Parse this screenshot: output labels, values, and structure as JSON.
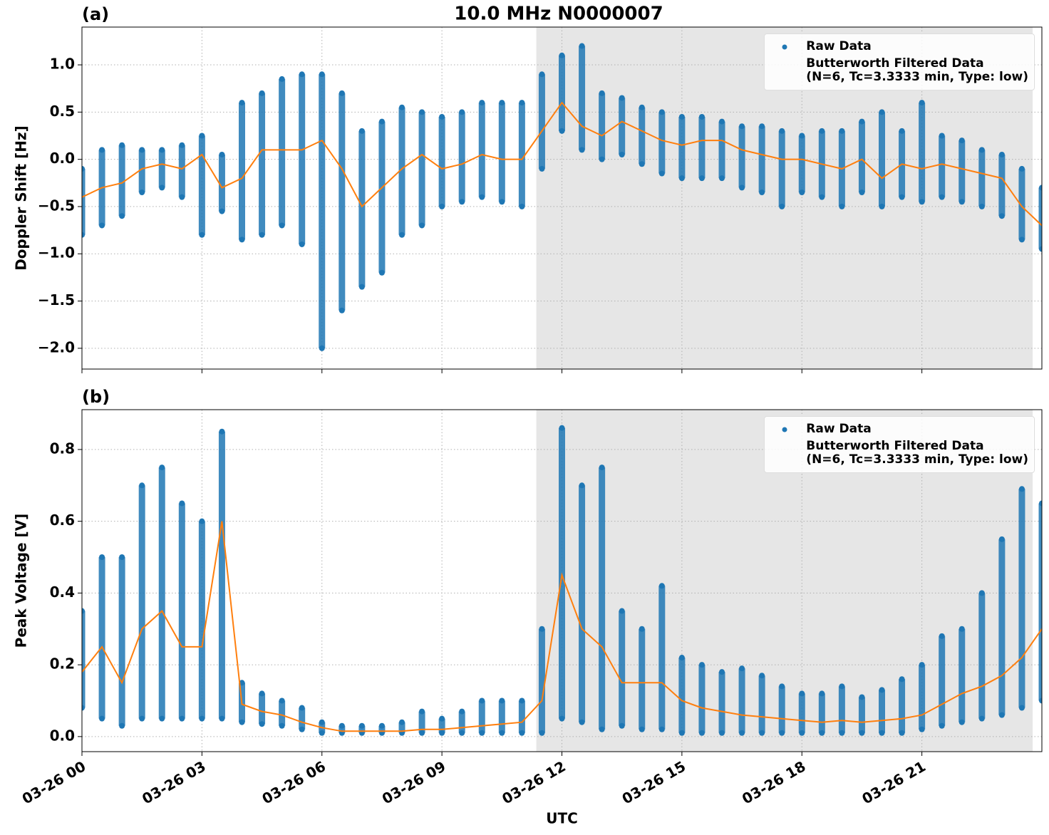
{
  "chart_data": [
    {
      "type": "scatter-line",
      "title": "10.0 MHz N0000007",
      "panel_label": "(a)",
      "y_label": "Doppler Shift [Hz]",
      "xlim": [
        0,
        24
      ],
      "ylim": [
        -2.22,
        1.4
      ],
      "yticks": [
        {
          "value": -2.0,
          "label": "−2.0"
        },
        {
          "value": -1.5,
          "label": "−1.5"
        },
        {
          "value": -1.0,
          "label": "−1.0"
        },
        {
          "value": -0.5,
          "label": "−0.5"
        },
        {
          "value": 0.0,
          "label": "0.0"
        },
        {
          "value": 0.5,
          "label": "0.5"
        },
        {
          "value": 1.0,
          "label": "1.0"
        }
      ],
      "grid": true,
      "legend": "upper right",
      "shade": [
        11.36,
        23.77
      ],
      "series": [
        {
          "name": "Raw Data",
          "color": "#1f77b4",
          "x": [
            0,
            0,
            0.5,
            0.5,
            1,
            1,
            1.5,
            1.5,
            2,
            2,
            2.5,
            2.5,
            3,
            3,
            3.5,
            3.5,
            4,
            4,
            4.5,
            4.5,
            5,
            5,
            5.5,
            5.5,
            6,
            6,
            6.5,
            6.5,
            7,
            7,
            7.5,
            7.5,
            8,
            8,
            8.5,
            8.5,
            9,
            9,
            9.5,
            9.5,
            10,
            10,
            10.5,
            10.5,
            11,
            11,
            11.5,
            11.5,
            12,
            12,
            12.5,
            12.5,
            13,
            13,
            13.5,
            13.5,
            14,
            14,
            14.5,
            14.5,
            15,
            15,
            15.5,
            15.5,
            16,
            16,
            16.5,
            16.5,
            17,
            17,
            17.5,
            17.5,
            18,
            18,
            18.5,
            18.5,
            19,
            19,
            19.5,
            19.5,
            20,
            20,
            20.5,
            20.5,
            21,
            21,
            21.5,
            21.5,
            22,
            22,
            22.5,
            22.5,
            23,
            23,
            23.5,
            23.5,
            24,
            24
          ],
          "values": [
            -0.1,
            -0.8,
            0.1,
            -0.7,
            0.15,
            -0.6,
            0.1,
            -0.35,
            0.1,
            -0.3,
            0.15,
            -0.4,
            0.25,
            -0.8,
            0.05,
            -0.55,
            0.6,
            -0.85,
            0.7,
            -0.8,
            0.85,
            -0.7,
            0.9,
            -0.9,
            0.9,
            -2.0,
            0.7,
            -1.6,
            0.3,
            -1.35,
            0.4,
            -1.2,
            0.55,
            -0.8,
            0.5,
            -0.7,
            0.45,
            -0.5,
            0.5,
            -0.45,
            0.6,
            -0.4,
            0.6,
            -0.45,
            0.6,
            -0.5,
            0.9,
            -0.1,
            1.1,
            0.3,
            1.2,
            0.1,
            0.7,
            0.0,
            0.65,
            0.05,
            0.55,
            -0.05,
            0.5,
            -0.15,
            0.45,
            -0.2,
            0.45,
            -0.2,
            0.4,
            -0.2,
            0.35,
            -0.3,
            0.35,
            -0.35,
            0.3,
            -0.5,
            0.25,
            -0.35,
            0.3,
            -0.4,
            0.3,
            -0.5,
            0.4,
            -0.35,
            0.5,
            -0.5,
            0.3,
            -0.4,
            0.6,
            -0.45,
            0.25,
            -0.4,
            0.2,
            -0.45,
            0.1,
            -0.5,
            0.05,
            -0.6,
            -0.1,
            -0.85,
            -0.3,
            -0.95
          ]
        },
        {
          "name": "Butterworth Filtered Data\n(N=6, Tc=3.3333 min, Type: low)",
          "color": "#ff7f0e",
          "x": [
            0,
            0.5,
            1,
            1.5,
            2,
            2.5,
            3,
            3.5,
            4,
            4.5,
            5,
            5.5,
            6,
            6.5,
            7,
            7.5,
            8,
            8.5,
            9,
            9.5,
            10,
            10.5,
            11,
            11.5,
            12,
            12.5,
            13,
            13.5,
            14,
            14.5,
            15,
            15.5,
            16,
            16.5,
            17,
            17.5,
            18,
            18.5,
            19,
            19.5,
            20,
            20.5,
            21,
            21.5,
            22,
            22.5,
            23,
            23.5,
            24
          ],
          "values": [
            -0.4,
            -0.3,
            -0.25,
            -0.1,
            -0.05,
            -0.1,
            0.05,
            -0.3,
            -0.2,
            0.1,
            0.1,
            0.1,
            0.2,
            -0.1,
            -0.5,
            -0.3,
            -0.1,
            0.05,
            -0.1,
            -0.05,
            0.05,
            0.0,
            0.0,
            0.3,
            0.6,
            0.35,
            0.25,
            0.4,
            0.3,
            0.2,
            0.15,
            0.2,
            0.2,
            0.1,
            0.05,
            0.0,
            0.0,
            -0.05,
            -0.1,
            0.0,
            -0.2,
            -0.05,
            -0.1,
            -0.05,
            -0.1,
            -0.15,
            -0.2,
            -0.5,
            -0.7
          ]
        }
      ]
    },
    {
      "type": "scatter-line",
      "panel_label": "(b)",
      "y_label": "Peak Voltage [V]",
      "x_label": "UTC",
      "xlim": [
        0,
        24
      ],
      "ylim": [
        -0.042,
        0.911
      ],
      "xticks": [
        {
          "value": 0,
          "label": "03-26 00"
        },
        {
          "value": 3,
          "label": "03-26 03"
        },
        {
          "value": 6,
          "label": "03-26 06"
        },
        {
          "value": 9,
          "label": "03-26 09"
        },
        {
          "value": 12,
          "label": "03-26 12"
        },
        {
          "value": 15,
          "label": "03-26 15"
        },
        {
          "value": 18,
          "label": "03-26 18"
        },
        {
          "value": 21,
          "label": "03-26 21"
        }
      ],
      "yticks": [
        {
          "value": 0.0,
          "label": "0.0"
        },
        {
          "value": 0.2,
          "label": "0.2"
        },
        {
          "value": 0.4,
          "label": "0.4"
        },
        {
          "value": 0.6,
          "label": "0.6"
        },
        {
          "value": 0.8,
          "label": "0.8"
        }
      ],
      "grid": true,
      "legend": "upper right",
      "shade": [
        11.36,
        23.77
      ],
      "series": [
        {
          "name": "Raw Data",
          "color": "#1f77b4",
          "x": [
            0,
            0,
            0.5,
            0.5,
            1,
            1,
            1.5,
            1.5,
            2,
            2,
            2.5,
            2.5,
            3,
            3,
            3.5,
            3.5,
            4,
            4,
            4.5,
            4.5,
            5,
            5,
            5.5,
            5.5,
            6,
            6,
            6.5,
            6.5,
            7,
            7,
            7.5,
            7.5,
            8,
            8,
            8.5,
            8.5,
            9,
            9,
            9.5,
            9.5,
            10,
            10,
            10.5,
            10.5,
            11,
            11,
            11.5,
            11.5,
            12,
            12,
            12.5,
            12.5,
            13,
            13,
            13.5,
            13.5,
            14,
            14,
            14.5,
            14.5,
            15,
            15,
            15.5,
            15.5,
            16,
            16,
            16.5,
            16.5,
            17,
            17,
            17.5,
            17.5,
            18,
            18,
            18.5,
            18.5,
            19,
            19,
            19.5,
            19.5,
            20,
            20,
            20.5,
            20.5,
            21,
            21,
            21.5,
            21.5,
            22,
            22,
            22.5,
            22.5,
            23,
            23,
            23.5,
            23.5,
            24,
            24
          ],
          "values": [
            0.35,
            0.08,
            0.5,
            0.05,
            0.5,
            0.03,
            0.7,
            0.05,
            0.75,
            0.05,
            0.65,
            0.05,
            0.6,
            0.05,
            0.85,
            0.05,
            0.15,
            0.04,
            0.12,
            0.035,
            0.1,
            0.03,
            0.08,
            0.02,
            0.04,
            0.01,
            0.03,
            0.01,
            0.03,
            0.01,
            0.03,
            0.01,
            0.04,
            0.01,
            0.07,
            0.01,
            0.05,
            0.01,
            0.07,
            0.01,
            0.1,
            0.01,
            0.1,
            0.01,
            0.1,
            0.01,
            0.3,
            0.01,
            0.86,
            0.05,
            0.7,
            0.04,
            0.75,
            0.02,
            0.35,
            0.03,
            0.3,
            0.02,
            0.42,
            0.02,
            0.22,
            0.01,
            0.2,
            0.01,
            0.18,
            0.01,
            0.19,
            0.01,
            0.17,
            0.01,
            0.14,
            0.01,
            0.12,
            0.01,
            0.12,
            0.01,
            0.14,
            0.01,
            0.11,
            0.01,
            0.13,
            0.01,
            0.16,
            0.01,
            0.2,
            0.02,
            0.28,
            0.03,
            0.3,
            0.04,
            0.4,
            0.05,
            0.55,
            0.06,
            0.69,
            0.08,
            0.65,
            0.1
          ]
        },
        {
          "name": "Butterworth Filtered Data\n(N=6, Tc=3.3333 min, Type: low)",
          "color": "#ff7f0e",
          "x": [
            0,
            0.5,
            1,
            1.5,
            2,
            2.5,
            3,
            3.5,
            4,
            4.5,
            5,
            5.5,
            6,
            6.5,
            7,
            7.5,
            8,
            8.5,
            9,
            9.5,
            10,
            10.5,
            11,
            11.5,
            12,
            12.5,
            13,
            13.5,
            14,
            14.5,
            15,
            15.5,
            16,
            16.5,
            17,
            17.5,
            18,
            18.5,
            19,
            19.5,
            20,
            20.5,
            21,
            21.5,
            22,
            22.5,
            23,
            23.5,
            24
          ],
          "values": [
            0.18,
            0.25,
            0.15,
            0.3,
            0.35,
            0.25,
            0.25,
            0.6,
            0.09,
            0.07,
            0.06,
            0.04,
            0.025,
            0.015,
            0.015,
            0.015,
            0.015,
            0.02,
            0.02,
            0.025,
            0.03,
            0.035,
            0.04,
            0.1,
            0.45,
            0.3,
            0.25,
            0.15,
            0.15,
            0.15,
            0.1,
            0.08,
            0.07,
            0.06,
            0.055,
            0.05,
            0.045,
            0.04,
            0.045,
            0.04,
            0.045,
            0.05,
            0.06,
            0.09,
            0.12,
            0.14,
            0.17,
            0.22,
            0.3
          ]
        }
      ]
    }
  ]
}
